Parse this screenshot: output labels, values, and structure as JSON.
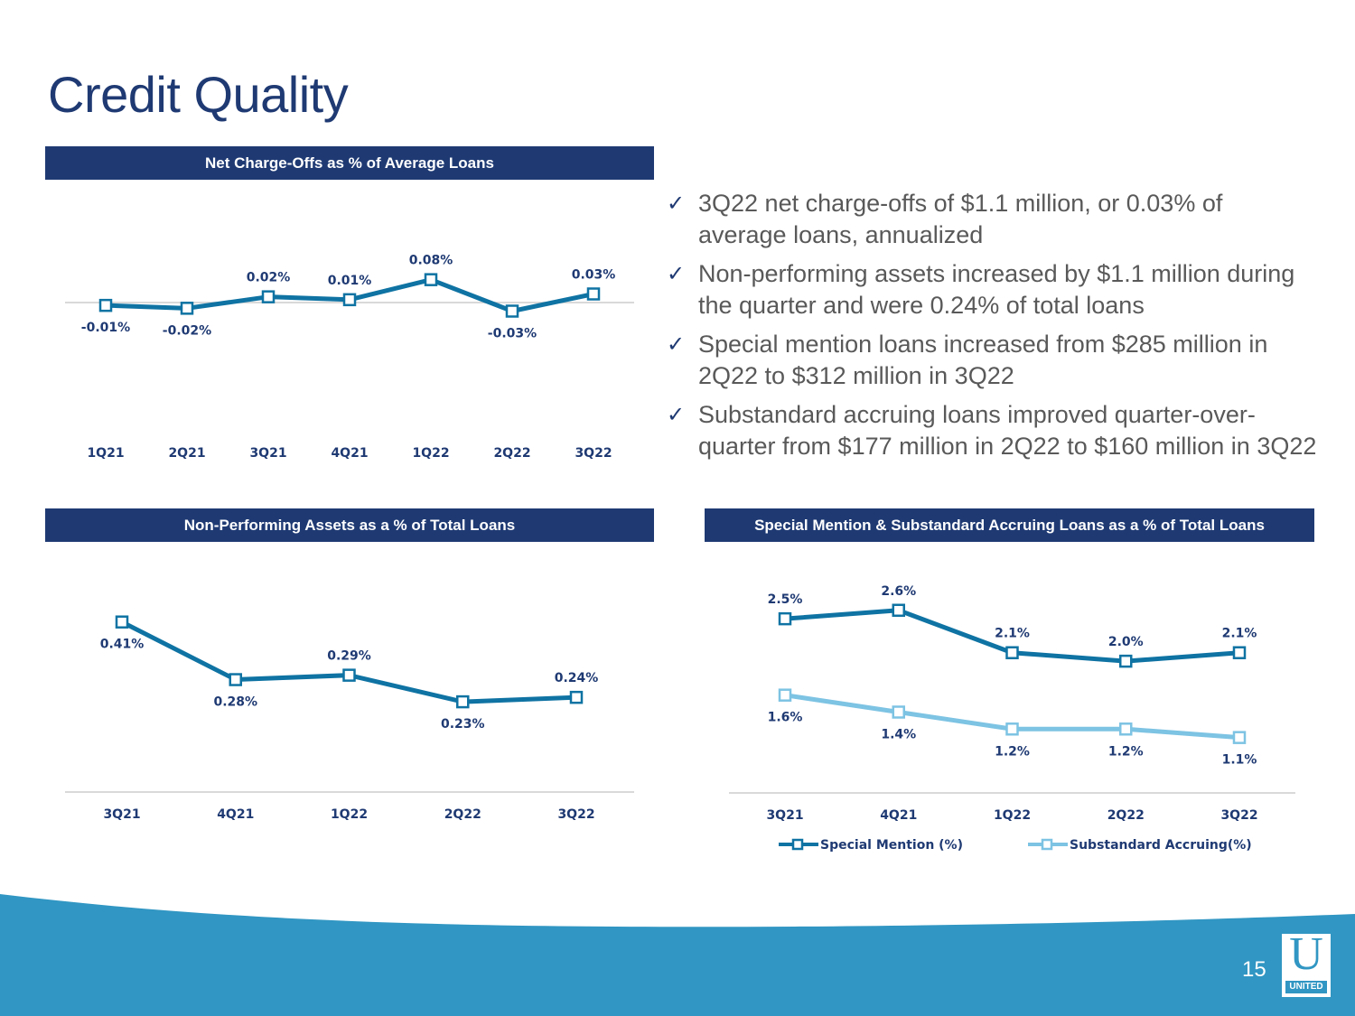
{
  "slide": {
    "title": "Credit Quality",
    "page_number": "15",
    "logo": {
      "letter": "U",
      "name": "UNITED"
    },
    "colors": {
      "navy": "#1f3a73",
      "series_dark": "#0f73a3",
      "series_light": "#7dc3e3",
      "footer_blue": "#3196c3",
      "body_text": "#595959",
      "axis_line": "#d9d9d9"
    }
  },
  "bullets": [
    "3Q22 net charge-offs of $1.1 million, or 0.03% of average loans, annualized",
    "Non-performing assets increased by $1.1 million during the quarter and were 0.24% of total loans",
    "Special mention loans increased from $285 million in 2Q22 to $312 million in 3Q22",
    "Substandard accruing loans improved quarter-over-quarter from $177 million in 2Q22 to $160 million in 3Q22"
  ],
  "bullet_marker": "✓",
  "chart_data": [
    {
      "type": "line",
      "title": "Net Charge-Offs as % of Average Loans",
      "xlabel": "",
      "ylabel": "",
      "categories": [
        "1Q21",
        "2Q21",
        "3Q21",
        "4Q21",
        "1Q22",
        "2Q22",
        "3Q22"
      ],
      "series": [
        {
          "name": "Net Charge-Offs (%)",
          "values": [
            -0.01,
            -0.02,
            0.02,
            0.01,
            0.08,
            -0.03,
            0.03
          ],
          "labels": [
            "-0.01%",
            "-0.02%",
            "0.02%",
            "0.01%",
            "0.08%",
            "-0.03%",
            "0.03%"
          ],
          "label_pos": [
            "below",
            "below",
            "above",
            "above",
            "above",
            "below",
            "above"
          ]
        }
      ],
      "ylim": [
        -0.3,
        0.3
      ],
      "grid": false,
      "zero_line": true,
      "legend": "none"
    },
    {
      "type": "line",
      "title": "Non-Performing Assets as a % of Total Loans",
      "xlabel": "",
      "ylabel": "",
      "categories": [
        "3Q21",
        "4Q21",
        "1Q22",
        "2Q22",
        "3Q22"
      ],
      "series": [
        {
          "name": "Non-Performing Assets (%)",
          "values": [
            0.41,
            0.28,
            0.29,
            0.23,
            0.24
          ],
          "labels": [
            "0.41%",
            "0.28%",
            "0.29%",
            "0.23%",
            "0.24%"
          ],
          "label_pos": [
            "below",
            "below",
            "above",
            "below",
            "above"
          ]
        }
      ],
      "ylim": [
        0,
        0.55
      ],
      "grid": false,
      "legend": "none"
    },
    {
      "type": "line",
      "title": "Special Mention & Substandard Accruing Loans as a % of Total Loans",
      "xlabel": "",
      "ylabel": "",
      "categories": [
        "3Q21",
        "4Q21",
        "1Q22",
        "2Q22",
        "3Q22"
      ],
      "series": [
        {
          "name": "Special Mention (%)",
          "values": [
            2.5,
            2.6,
            2.1,
            2.0,
            2.1
          ],
          "labels": [
            "2.5%",
            "2.6%",
            "2.1%",
            "2.0%",
            "2.1%"
          ],
          "label_pos": [
            "above",
            "above",
            "above",
            "above",
            "above"
          ]
        },
        {
          "name": "Substandard Accruing(%)",
          "values": [
            1.6,
            1.4,
            1.2,
            1.2,
            1.1
          ],
          "labels": [
            "1.6%",
            "1.4%",
            "1.2%",
            "1.2%",
            "1.1%"
          ],
          "label_pos": [
            "below",
            "below",
            "below",
            "below",
            "below"
          ]
        }
      ],
      "ylim": [
        0,
        3.3
      ],
      "grid": false,
      "legend": "bottom"
    }
  ]
}
